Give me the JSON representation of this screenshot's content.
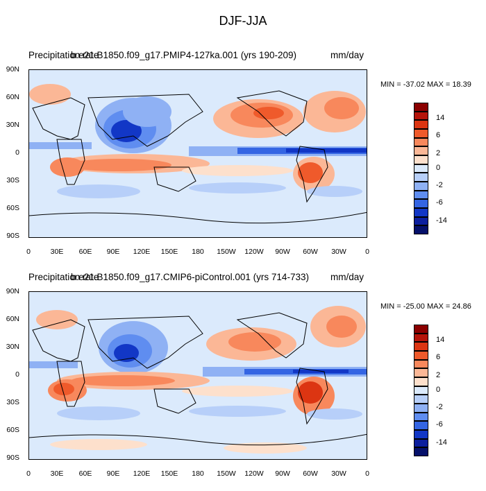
{
  "title": "DJF-JJA",
  "panels": [
    {
      "variable": "Precipitation rate",
      "case": "b.e21.B1850.f09_g17.PMIP4-127ka.001 (yrs 190-209)",
      "units": "mm/day",
      "minmax": "MIN = -37.02 MAX =  18.39"
    },
    {
      "variable": "Precipitation rate",
      "case": "b.e21.B1850.f09_g17.CMIP6-piControl.001 (yrs 714-733)",
      "units": "mm/day",
      "minmax": "MIN = -25.00 MAX =  24.86"
    }
  ],
  "lat_ticks": [
    "90N",
    "60N",
    "30N",
    "0",
    "30S",
    "60S",
    "90S"
  ],
  "lon_ticks": [
    "0",
    "30E",
    "60E",
    "90E",
    "120E",
    "150E",
    "180",
    "150W",
    "120W",
    "90W",
    "60W",
    "30W",
    "0"
  ],
  "colorbar": {
    "colors": [
      "#8b0000",
      "#b5140a",
      "#dc3512",
      "#ef5a2b",
      "#f8885c",
      "#fbb796",
      "#fde0cc",
      "#dbeafc",
      "#b7cff9",
      "#8fb1f4",
      "#5f8df0",
      "#3465e3",
      "#1237c6",
      "#0c1f9e",
      "#05106a"
    ],
    "labels": [
      "14",
      "6",
      "2",
      "0",
      "-2",
      "-6",
      "-14"
    ]
  }
}
